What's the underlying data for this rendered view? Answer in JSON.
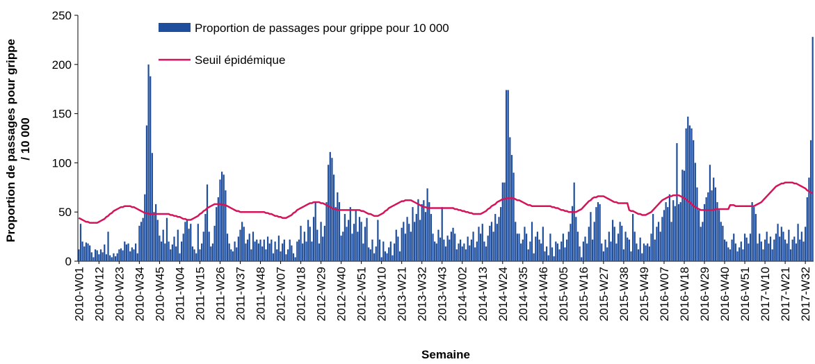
{
  "chart_data": {
    "type": "bar",
    "ylabel": [
      "Proportion de passages pour grippe",
      "/ 10 000"
    ],
    "xlabel": "Semaine",
    "ylim": [
      0,
      250
    ],
    "yticks": [
      0,
      50,
      100,
      150,
      200,
      250
    ],
    "categories": [
      "2010-W01",
      null,
      null,
      null,
      null,
      null,
      null,
      null,
      null,
      null,
      null,
      "2010-W12",
      null,
      null,
      null,
      null,
      null,
      null,
      null,
      null,
      null,
      null,
      "2010-W23",
      null,
      null,
      null,
      null,
      null,
      null,
      null,
      null,
      null,
      null,
      "2010-W34",
      null,
      null,
      null,
      null,
      null,
      null,
      null,
      null,
      null,
      null,
      "2010-W45",
      null,
      null,
      null,
      null,
      null,
      null,
      null,
      null,
      null,
      null,
      "2011-W04",
      null,
      null,
      null,
      null,
      null,
      null,
      null,
      null,
      null,
      null,
      "2011-W15",
      null,
      null,
      null,
      null,
      null,
      null,
      null,
      null,
      null,
      null,
      "2011-W26",
      null,
      null,
      null,
      null,
      null,
      null,
      null,
      null,
      null,
      null,
      "2011-W37",
      null,
      null,
      null,
      null,
      null,
      null,
      null,
      null,
      null,
      null,
      "2011-W48",
      null,
      null,
      null,
      null,
      null,
      null,
      null,
      null,
      null,
      null,
      "2012-W07",
      null,
      null,
      null,
      null,
      null,
      null,
      null,
      null,
      null,
      null,
      "2012-W18",
      null,
      null,
      null,
      null,
      null,
      null,
      null,
      null,
      null,
      null,
      "2012-W29",
      null,
      null,
      null,
      null,
      null,
      null,
      null,
      null,
      null,
      null,
      "2012-W40",
      null,
      null,
      null,
      null,
      null,
      null,
      null,
      null,
      null,
      null,
      "2012-W51",
      null,
      null,
      null,
      null,
      null,
      null,
      null,
      null,
      null,
      null,
      "2013-W10",
      null,
      null,
      null,
      null,
      null,
      null,
      null,
      null,
      null,
      null,
      "2013-W21",
      null,
      null,
      null,
      null,
      null,
      null,
      null,
      null,
      null,
      null,
      "2013-W32",
      null,
      null,
      null,
      null,
      null,
      null,
      null,
      null,
      null,
      null,
      "2013-W43",
      null,
      null,
      null,
      null,
      null,
      null,
      null,
      null,
      null,
      null,
      "2014-W02",
      null,
      null,
      null,
      null,
      null,
      null,
      null,
      null,
      null,
      null,
      "2014-W13",
      null,
      null,
      null,
      null,
      null,
      null,
      null,
      null,
      null,
      null,
      "2014-W24",
      null,
      null,
      null,
      null,
      null,
      null,
      null,
      null,
      null,
      null,
      "2014-W35",
      null,
      null,
      null,
      null,
      null,
      null,
      null,
      null,
      null,
      null,
      "2014-W46",
      null,
      null,
      null,
      null,
      null,
      null,
      null,
      null,
      null,
      null,
      "2015-W05",
      null,
      null,
      null,
      null,
      null,
      null,
      null,
      null,
      null,
      null,
      "2015-W16",
      null,
      null,
      null,
      null,
      null,
      null,
      null,
      null,
      null,
      null,
      "2015-W27",
      null,
      null,
      null,
      null,
      null,
      null,
      null,
      null,
      null,
      null,
      "2015-W38",
      null,
      null,
      null,
      null,
      null,
      null,
      null,
      null,
      null,
      null,
      "2015-W49",
      null,
      null,
      null,
      null,
      null,
      null,
      null,
      null,
      null,
      null,
      "2016-W07",
      null,
      null,
      null,
      null,
      null,
      null,
      null,
      null,
      null,
      null,
      "2016-W18",
      null,
      null,
      null,
      null,
      null,
      null,
      null,
      null,
      null,
      null,
      "2016-W29",
      null,
      null,
      null,
      null,
      null,
      null,
      null,
      null,
      null,
      null,
      "2016-W40",
      null,
      null,
      null,
      null,
      null,
      null,
      null,
      null,
      null,
      null,
      "2016-W51",
      null,
      null,
      null,
      null,
      null,
      null,
      null,
      null,
      null,
      null,
      "2017-W10",
      null,
      null,
      null,
      null,
      null,
      null,
      null,
      null,
      null,
      null,
      "2017-W21",
      null,
      null,
      null,
      null,
      null,
      null,
      null,
      null,
      null,
      null,
      "2017-W32",
      null,
      null,
      null,
      null
    ],
    "series": [
      {
        "name": "Proportion de passages pour grippe pour 10 000",
        "type": "bar",
        "color": "#1f4e9c",
        "values": [
          12,
          38,
          20,
          15,
          19,
          18,
          16,
          9,
          4,
          12,
          11,
          7,
          12,
          9,
          17,
          7,
          30,
          6,
          4,
          8,
          5,
          8,
          12,
          13,
          11,
          20,
          17,
          18,
          10,
          14,
          12,
          18,
          8,
          36,
          40,
          44,
          68,
          138,
          200,
          188,
          110,
          50,
          58,
          42,
          26,
          20,
          32,
          18,
          44,
          20,
          12,
          17,
          25,
          15,
          32,
          8,
          20,
          28,
          40,
          42,
          33,
          38,
          15,
          12,
          8,
          38,
          12,
          18,
          30,
          48,
          78,
          30,
          15,
          18,
          36,
          55,
          65,
          83,
          91,
          88,
          72,
          28,
          18,
          12,
          10,
          20,
          14,
          25,
          32,
          40,
          35,
          18,
          22,
          28,
          12,
          30,
          20,
          22,
          18,
          22,
          15,
          22,
          12,
          25,
          18,
          22,
          8,
          20,
          12,
          26,
          10,
          18,
          22,
          7,
          12,
          22,
          16,
          8,
          4,
          20,
          22,
          36,
          18,
          30,
          20,
          42,
          35,
          20,
          45,
          60,
          32,
          18,
          40,
          25,
          36,
          60,
          98,
          111,
          105,
          88,
          55,
          70,
          60,
          26,
          30,
          48,
          35,
          42,
          55,
          28,
          38,
          52,
          30,
          45,
          40,
          18,
          35,
          44,
          14,
          12,
          22,
          8,
          15,
          42,
          22,
          4,
          20,
          10,
          8,
          14,
          20,
          6,
          18,
          32,
          25,
          10,
          34,
          40,
          28,
          45,
          38,
          30,
          55,
          40,
          48,
          63,
          42,
          58,
          62,
          50,
          74,
          60,
          48,
          28,
          20,
          18,
          32,
          24,
          55,
          22,
          15,
          26,
          22,
          30,
          34,
          28,
          12,
          18,
          22,
          15,
          18,
          12,
          25,
          16,
          22,
          30,
          14,
          20,
          35,
          28,
          38,
          20,
          15,
          26,
          36,
          40,
          30,
          48,
          38,
          45,
          55,
          80,
          80,
          174,
          174,
          126,
          108,
          90,
          40,
          28,
          28,
          18,
          22,
          35,
          28,
          12,
          20,
          40,
          8,
          25,
          30,
          22,
          18,
          35,
          10,
          15,
          6,
          28,
          14,
          5,
          20,
          18,
          12,
          20,
          28,
          14,
          22,
          30,
          38,
          56,
          80,
          45,
          30,
          15,
          4,
          20,
          25,
          18,
          35,
          50,
          22,
          40,
          55,
          60,
          58,
          18,
          10,
          22,
          14,
          30,
          20,
          42,
          35,
          18,
          28,
          40,
          36,
          12,
          30,
          24,
          22,
          10,
          48,
          30,
          18,
          12,
          24,
          8,
          18,
          16,
          18,
          15,
          28,
          48,
          22,
          35,
          40,
          30,
          45,
          52,
          60,
          55,
          68,
          40,
          62,
          56,
          120,
          58,
          60,
          93,
          92,
          135,
          147,
          138,
          135,
          123,
          100,
          75,
          52,
          35,
          40,
          58,
          65,
          70,
          98,
          72,
          85,
          75,
          60,
          52,
          40,
          36,
          22,
          20,
          14,
          12,
          22,
          28,
          18,
          10,
          14,
          20,
          12,
          28,
          24,
          18,
          28,
          60,
          55,
          48,
          18,
          28,
          20,
          12,
          22,
          30,
          18,
          25,
          12,
          22,
          28,
          38,
          25,
          35,
          30,
          22,
          18,
          32,
          12,
          22,
          25,
          18,
          38,
          22,
          30,
          20,
          35,
          65,
          85,
          123,
          228
        ]
      },
      {
        "name": "Seuil épidémique",
        "type": "line",
        "color": "#d4145a",
        "values": [
          44,
          43,
          42,
          41,
          40,
          40,
          39,
          39,
          39,
          39,
          39,
          40,
          41,
          42,
          43,
          45,
          46,
          48,
          49,
          51,
          52,
          53,
          54,
          55,
          55,
          56,
          56,
          56,
          56,
          55,
          55,
          54,
          53,
          52,
          51,
          50,
          49,
          49,
          48,
          48,
          48,
          48,
          48,
          48,
          48,
          48,
          48,
          48,
          48,
          48,
          47,
          47,
          46,
          46,
          45,
          45,
          44,
          43,
          43,
          42,
          42,
          42,
          43,
          44,
          45,
          46,
          48,
          49,
          51,
          52,
          54,
          55,
          56,
          57,
          58,
          58,
          58,
          58,
          58,
          57,
          57,
          56,
          55,
          54,
          53,
          52,
          51,
          51,
          50,
          50,
          50,
          50,
          50,
          50,
          50,
          50,
          50,
          50,
          50,
          50,
          50,
          50,
          49,
          49,
          48,
          48,
          47,
          46,
          46,
          45,
          45,
          44,
          44,
          44,
          45,
          46,
          47,
          49,
          50,
          52,
          53,
          54,
          55,
          56,
          57,
          58,
          59,
          59,
          60,
          60,
          60,
          60,
          59,
          59,
          58,
          57,
          56,
          55,
          54,
          53,
          53,
          52,
          52,
          52,
          52,
          52,
          52,
          52,
          52,
          52,
          52,
          52,
          52,
          52,
          51,
          51,
          50,
          49,
          48,
          48,
          47,
          46,
          46,
          46,
          47,
          48,
          49,
          51,
          52,
          54,
          55,
          56,
          57,
          58,
          59,
          60,
          61,
          61,
          62,
          62,
          62,
          62,
          61,
          60,
          59,
          58,
          57,
          56,
          55,
          55,
          54,
          54,
          54,
          54,
          54,
          54,
          54,
          54,
          54,
          54,
          54,
          54,
          54,
          54,
          54,
          53,
          53,
          52,
          52,
          51,
          51,
          50,
          50,
          49,
          49,
          48,
          48,
          48,
          48,
          48,
          49,
          50,
          51,
          53,
          54,
          56,
          57,
          58,
          60,
          61,
          62,
          63,
          63,
          64,
          64,
          64,
          64,
          64,
          63,
          62,
          62,
          61,
          60,
          59,
          58,
          57,
          57,
          56,
          56,
          56,
          56,
          56,
          56,
          56,
          56,
          56,
          56,
          56,
          55,
          55,
          54,
          54,
          53,
          52,
          52,
          51,
          51,
          50,
          50,
          50,
          50,
          50,
          51,
          52,
          53,
          55,
          57,
          59,
          61,
          62,
          64,
          65,
          65,
          66,
          66,
          66,
          66,
          65,
          64,
          63,
          62,
          61,
          60,
          60,
          59,
          59,
          59,
          59,
          59,
          59,
          52,
          51,
          51,
          50,
          49,
          48,
          48,
          47,
          47,
          47,
          48,
          49,
          50,
          52,
          54,
          56,
          58,
          60,
          62,
          63,
          64,
          65,
          66,
          66,
          67,
          67,
          67,
          67,
          66,
          65,
          64,
          63,
          61,
          60,
          58,
          56,
          55,
          54,
          53,
          52,
          52,
          52,
          52,
          52,
          52,
          52,
          52,
          53,
          53,
          53,
          53,
          53,
          53,
          53,
          53,
          57,
          57,
          57,
          56,
          56,
          56,
          56,
          56,
          56,
          56,
          56,
          56,
          56,
          56,
          57,
          58,
          59,
          60,
          62,
          64,
          66,
          68,
          70,
          72,
          74,
          76,
          77,
          78,
          79,
          79,
          80,
          80,
          80,
          80,
          80,
          79,
          79,
          78,
          77,
          76,
          75,
          74,
          72,
          71,
          70,
          69
        ]
      }
    ]
  }
}
